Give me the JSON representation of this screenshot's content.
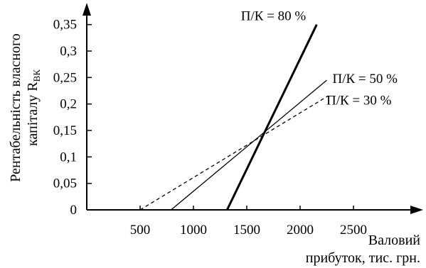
{
  "chart_data": {
    "type": "line",
    "xlabel": [
      "Валовий",
      "прибуток, тис. грн."
    ],
    "ylabel": [
      "Рентабельність власного",
      "капіталу R",
      "ВК"
    ],
    "xlim": [
      0,
      3000
    ],
    "ylim": [
      0,
      0.375
    ],
    "x_ticks": [
      {
        "value": 500,
        "label": "500"
      },
      {
        "value": 1000,
        "label": "1000"
      },
      {
        "value": 1500,
        "label": "1500"
      },
      {
        "value": 2000,
        "label": "2000"
      },
      {
        "value": 2500,
        "label": "2500"
      }
    ],
    "y_ticks": [
      {
        "value": 0,
        "label": "0"
      },
      {
        "value": 0.05,
        "label": "0,05"
      },
      {
        "value": 0.1,
        "label": "0,1"
      },
      {
        "value": 0.15,
        "label": "0,15"
      },
      {
        "value": 0.2,
        "label": "0,2"
      },
      {
        "value": 0.25,
        "label": "0,25"
      },
      {
        "value": 0.3,
        "label": "0,3"
      },
      {
        "value": 0.35,
        "label": "0,35"
      }
    ],
    "grid": false,
    "series": [
      {
        "name": "П/К = 30 %",
        "style": "dashed",
        "color": "#000000",
        "x": [
          500,
          2260
        ],
        "y": [
          0,
          0.215
        ]
      },
      {
        "name": "П/К = 50 %",
        "style": "solid",
        "color": "#000000",
        "x": [
          790,
          2250
        ],
        "y": [
          0,
          0.245
        ]
      },
      {
        "name": "П/К = 80 %",
        "style": "bold",
        "color": "#000000",
        "x": [
          1315,
          2155
        ],
        "y": [
          0,
          0.35
        ]
      }
    ]
  }
}
